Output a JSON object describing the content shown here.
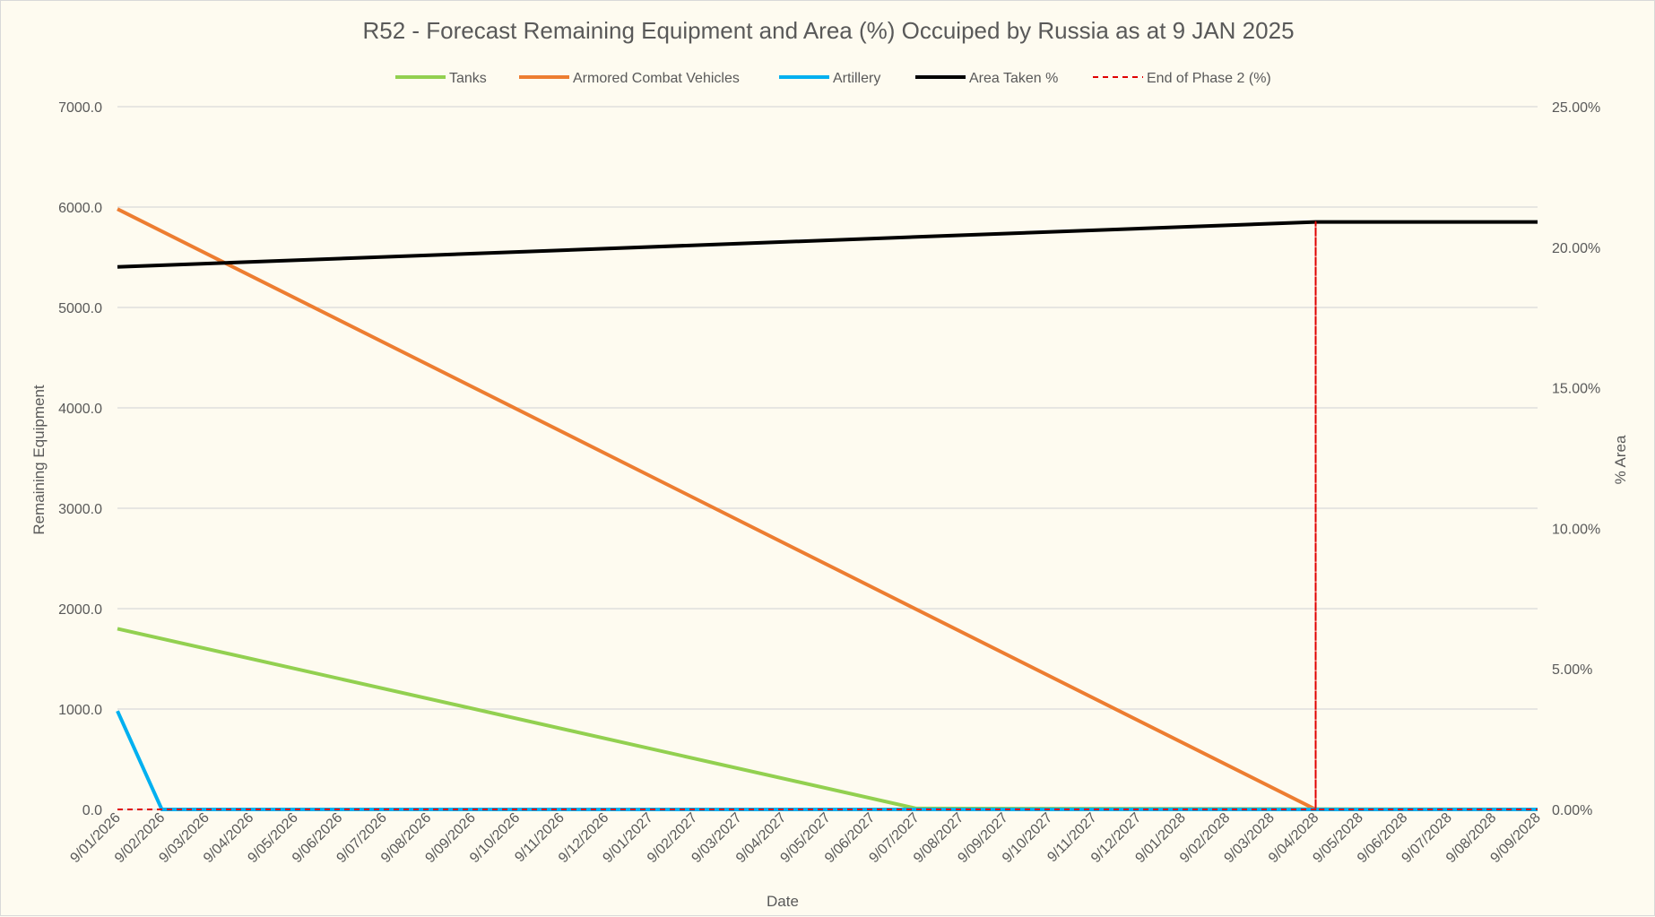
{
  "chart_data": {
    "type": "line",
    "title": "R52 - Forecast Remaining Equipment and Area (%) Occuiped by Russia as at 9 JAN 2025",
    "xlabel": "Date",
    "ylabel": "Remaining Equipment",
    "y2label": "% Area",
    "ylim": [
      0,
      7000
    ],
    "y2lim": [
      0,
      25
    ],
    "grid": true,
    "legend_position": "top",
    "y_ticks": [
      "0.0",
      "1000.0",
      "2000.0",
      "3000.0",
      "4000.0",
      "5000.0",
      "6000.0",
      "7000.0"
    ],
    "y2_ticks": [
      "0.00%",
      "5.00%",
      "10.00%",
      "15.00%",
      "20.00%",
      "25.00%"
    ],
    "categories": [
      "9/01/2026",
      "9/02/2026",
      "9/03/2026",
      "9/04/2026",
      "9/05/2026",
      "9/06/2026",
      "9/07/2026",
      "9/08/2026",
      "9/09/2026",
      "9/10/2026",
      "9/11/2026",
      "9/12/2026",
      "9/01/2027",
      "9/02/2027",
      "9/03/2027",
      "9/04/2027",
      "9/05/2027",
      "9/06/2027",
      "9/07/2027",
      "9/08/2027",
      "9/09/2027",
      "9/10/2027",
      "9/11/2027",
      "9/12/2027",
      "9/01/2028",
      "9/02/2028",
      "9/03/2028",
      "9/04/2028",
      "9/05/2028",
      "9/06/2028",
      "9/07/2028",
      "9/08/2028",
      "9/09/2028"
    ],
    "series": [
      {
        "name": "Tanks",
        "axis": "left",
        "color": "#92d050",
        "dash": false,
        "points": [
          [
            "9/01/2026",
            1800
          ],
          [
            "9/07/2027",
            10
          ],
          [
            "9/09/2028",
            0
          ]
        ]
      },
      {
        "name": "Armored Combat Vehicles",
        "axis": "left",
        "color": "#ed7d31",
        "dash": false,
        "points": [
          [
            "9/01/2026",
            5980
          ],
          [
            "9/04/2028",
            0
          ],
          [
            "9/09/2028",
            0
          ]
        ]
      },
      {
        "name": "Artillery",
        "axis": "left",
        "color": "#00b0f0",
        "dash": false,
        "points": [
          [
            "9/01/2026",
            980
          ],
          [
            "9/02/2026",
            0
          ],
          [
            "9/09/2028",
            0
          ]
        ]
      },
      {
        "name": "Area Taken %",
        "axis": "right",
        "color": "#000000",
        "dash": false,
        "points": [
          [
            "9/01/2026",
            19.3
          ],
          [
            "9/04/2028",
            20.9
          ],
          [
            "9/09/2028",
            20.9
          ]
        ]
      },
      {
        "name": "End of Phase 2 (%)",
        "axis": "right",
        "color": "#e00000",
        "dash": true,
        "points": [
          [
            "9/01/2026",
            0
          ],
          [
            "9/04/2028",
            0
          ],
          [
            "9/04/2028",
            20.9
          ],
          [
            "9/04/2028",
            0
          ],
          [
            "9/09/2028",
            0
          ]
        ]
      }
    ]
  }
}
